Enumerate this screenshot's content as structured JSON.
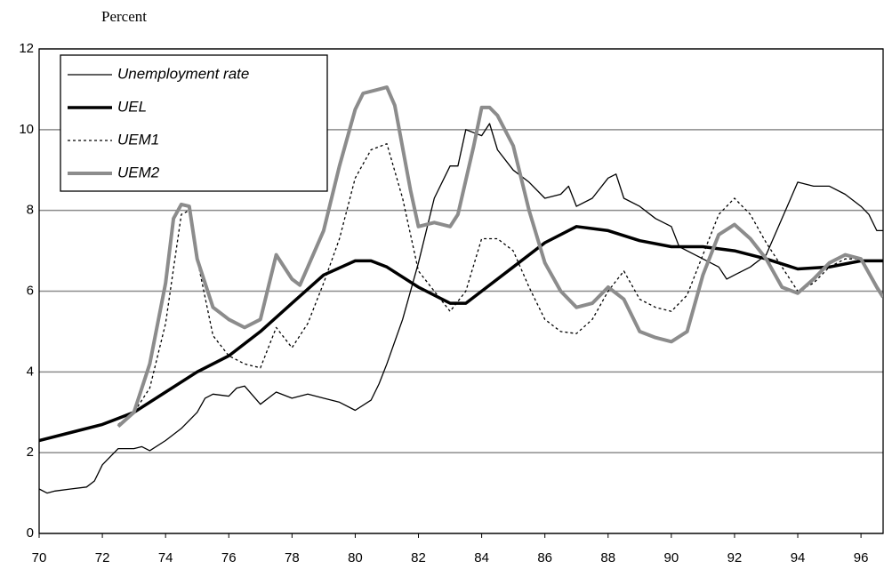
{
  "chart_data": {
    "type": "line",
    "y_label": "Percent",
    "xlim": [
      70,
      96.7
    ],
    "xticks": [
      70,
      72,
      74,
      76,
      78,
      80,
      82,
      84,
      86,
      88,
      90,
      92,
      94,
      96
    ],
    "ylim": [
      0,
      12
    ],
    "yticks": [
      0,
      2,
      4,
      6,
      8,
      10,
      12
    ],
    "grid": true,
    "legend": "upper left",
    "series": [
      {
        "name": "Unemployment rate",
        "color": "#000000",
        "width": 1.3,
        "dash": false,
        "x": [
          70,
          70.25,
          70.5,
          71,
          71.5,
          71.75,
          72,
          72.5,
          73,
          73.25,
          73.5,
          74,
          74.5,
          75,
          75.25,
          75.5,
          76,
          76.25,
          76.5,
          77,
          77.5,
          78,
          78.5,
          79,
          79.5,
          80,
          80.5,
          80.75,
          81,
          81.5,
          82,
          82.5,
          83,
          83.25,
          83.5,
          84,
          84.25,
          84.5,
          85,
          85.5,
          86,
          86.5,
          86.75,
          87,
          87.5,
          88,
          88.25,
          88.5,
          89,
          89.5,
          90,
          90.25,
          90.5,
          91,
          91.5,
          91.75,
          92,
          92.5,
          93,
          93.5,
          94,
          94.5,
          95,
          95.5,
          96,
          96.25,
          96.5,
          96.7
        ],
        "values": [
          1.1,
          1.0,
          1.05,
          1.1,
          1.15,
          1.3,
          1.7,
          2.1,
          2.1,
          2.15,
          2.05,
          2.3,
          2.6,
          3.0,
          3.35,
          3.45,
          3.4,
          3.6,
          3.65,
          3.2,
          3.5,
          3.35,
          3.45,
          3.35,
          3.25,
          3.05,
          3.3,
          3.7,
          4.2,
          5.3,
          6.7,
          8.3,
          9.1,
          9.1,
          10.0,
          9.85,
          10.15,
          9.5,
          9.0,
          8.7,
          8.3,
          8.4,
          8.6,
          8.1,
          8.3,
          8.8,
          8.9,
          8.3,
          8.1,
          7.8,
          7.6,
          7.1,
          7.0,
          6.8,
          6.6,
          6.3,
          6.4,
          6.6,
          6.9,
          7.8,
          8.7,
          8.6,
          8.6,
          8.4,
          8.1,
          7.9,
          7.5,
          7.5
        ]
      },
      {
        "name": "UEL",
        "color": "#000000",
        "width": 3.5,
        "dash": false,
        "x": [
          70,
          71,
          72,
          73,
          74,
          75,
          76,
          77,
          78,
          79,
          80,
          80.5,
          81,
          82,
          83,
          83.5,
          84,
          85,
          86,
          87,
          88,
          89,
          90,
          91,
          92,
          93,
          94,
          95,
          96,
          96.7
        ],
        "values": [
          2.3,
          2.5,
          2.7,
          3.0,
          3.5,
          4.0,
          4.4,
          5.0,
          5.7,
          6.4,
          6.75,
          6.75,
          6.6,
          6.1,
          5.7,
          5.7,
          6.0,
          6.6,
          7.2,
          7.6,
          7.5,
          7.25,
          7.1,
          7.1,
          7.0,
          6.8,
          6.55,
          6.6,
          6.75,
          6.75
        ]
      },
      {
        "name": "UEM1",
        "color": "#000000",
        "width": 1.3,
        "dash": true,
        "x": [
          72.5,
          73,
          73.5,
          74,
          74.5,
          74.75,
          75,
          75.5,
          76,
          76.5,
          77,
          77.5,
          78,
          78.5,
          79,
          79.5,
          80,
          80.5,
          81,
          81.5,
          82,
          82.5,
          83,
          83.5,
          84,
          84.5,
          85,
          85.5,
          86,
          86.5,
          87,
          87.5,
          88,
          88.5,
          89,
          89.5,
          90,
          90.5,
          91,
          91.5,
          92,
          92.5,
          93,
          93.5,
          94,
          94.5,
          95,
          95.5,
          96,
          96.5,
          96.7
        ],
        "values": [
          2.7,
          3.0,
          3.6,
          5.2,
          7.9,
          8.0,
          6.8,
          4.9,
          4.4,
          4.2,
          4.1,
          5.1,
          4.6,
          5.2,
          6.2,
          7.3,
          8.8,
          9.5,
          9.65,
          8.3,
          6.5,
          6.0,
          5.5,
          6.0,
          7.3,
          7.3,
          7.0,
          6.1,
          5.3,
          5.0,
          4.95,
          5.3,
          6.0,
          6.5,
          5.8,
          5.6,
          5.5,
          5.9,
          6.9,
          7.9,
          8.3,
          7.9,
          7.2,
          6.6,
          6.0,
          6.2,
          6.6,
          6.8,
          6.8,
          6.1,
          5.9
        ]
      },
      {
        "name": "UEM2",
        "color": "#8c8c8c",
        "width": 4,
        "dash": false,
        "x": [
          72.5,
          73,
          73.5,
          74,
          74.25,
          74.5,
          74.75,
          75,
          75.5,
          76,
          76.5,
          77,
          77.5,
          78,
          78.25,
          78.5,
          79,
          79.5,
          80,
          80.25,
          80.75,
          81,
          81.25,
          81.75,
          82,
          82.5,
          83,
          83.25,
          83.75,
          84,
          84.25,
          84.5,
          85,
          85.5,
          86,
          86.5,
          87,
          87.5,
          88,
          88.5,
          89,
          89.5,
          90,
          90.5,
          91,
          91.5,
          92,
          92.5,
          93,
          93.5,
          94,
          94.5,
          95,
          95.5,
          96,
          96.5,
          96.7
        ],
        "values": [
          2.65,
          3.0,
          4.2,
          6.2,
          7.8,
          8.15,
          8.1,
          6.8,
          5.6,
          5.3,
          5.1,
          5.3,
          6.9,
          6.3,
          6.15,
          6.6,
          7.5,
          9.1,
          10.5,
          10.9,
          11.0,
          11.05,
          10.6,
          8.5,
          7.6,
          7.7,
          7.6,
          7.9,
          9.6,
          10.55,
          10.55,
          10.35,
          9.6,
          8.0,
          6.7,
          6.0,
          5.6,
          5.7,
          6.1,
          5.8,
          5.0,
          4.85,
          4.75,
          5.0,
          6.4,
          7.4,
          7.65,
          7.3,
          6.8,
          6.1,
          5.95,
          6.3,
          6.7,
          6.9,
          6.8,
          6.1,
          5.85
        ]
      }
    ]
  }
}
